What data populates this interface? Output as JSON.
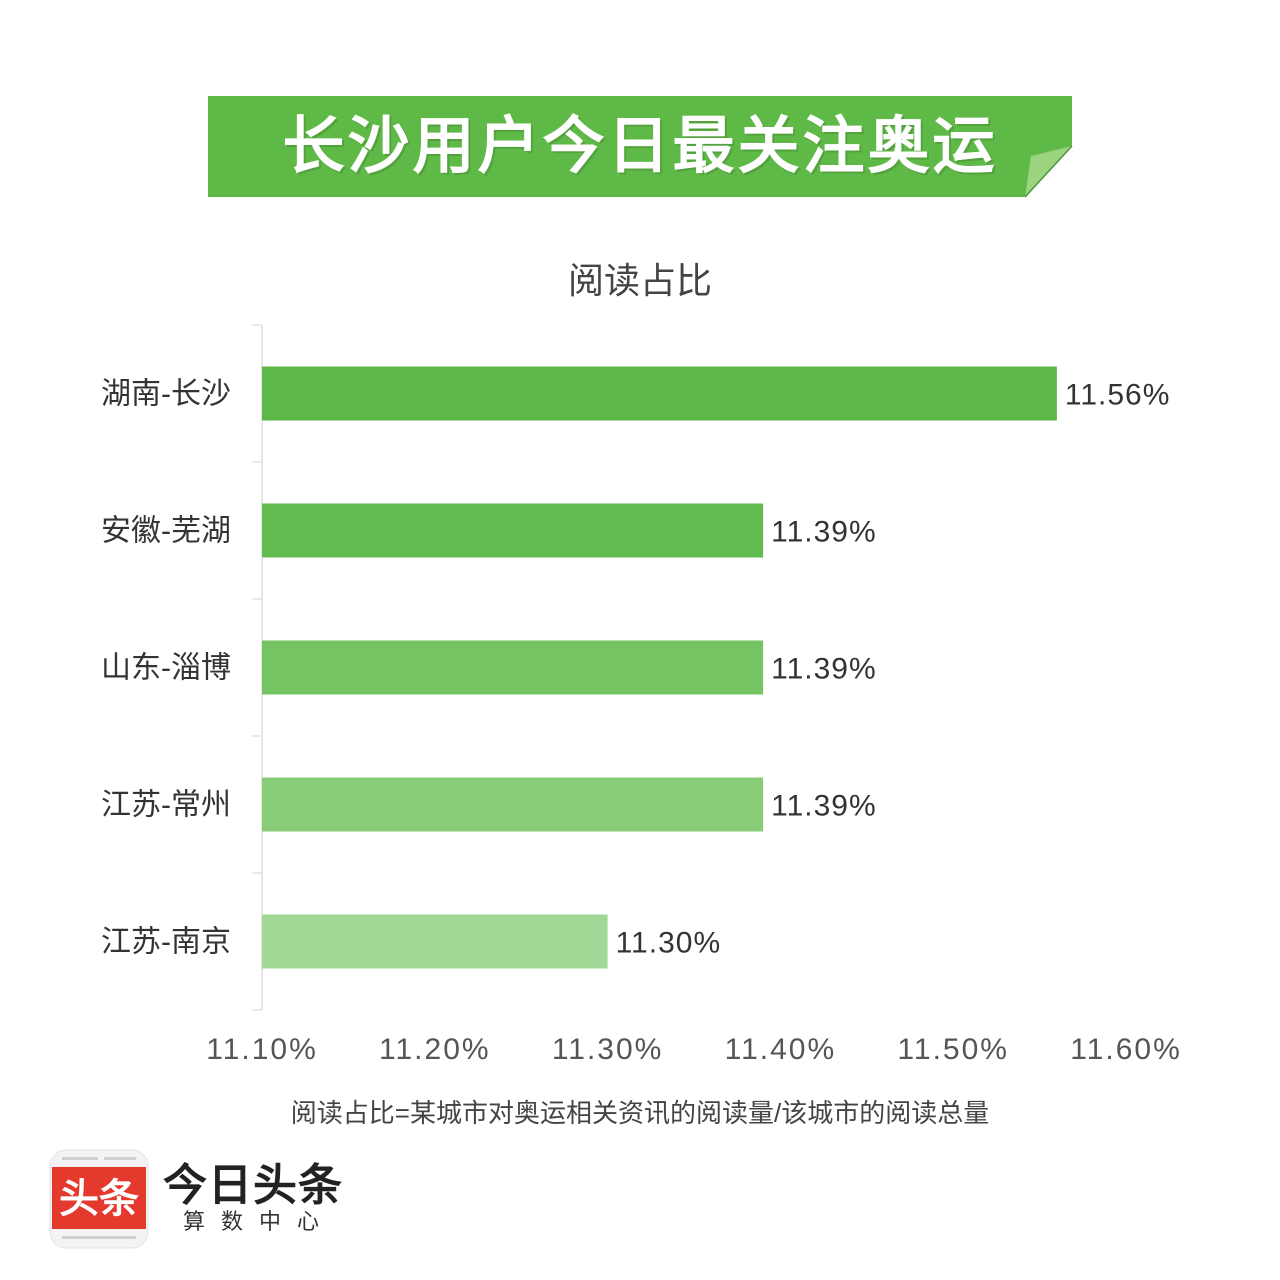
{
  "banner": {
    "title": "长沙用户今日最关注奥运",
    "color": "#5fb946",
    "fold_color": "#9bd37f"
  },
  "chart_data": {
    "type": "bar",
    "orientation": "horizontal",
    "title": "阅读占比",
    "categories": [
      "湖南-长沙",
      "安徽-芜湖",
      "山东-淄博",
      "江苏-常州",
      "江苏-南京"
    ],
    "values": [
      11.56,
      11.39,
      11.39,
      11.39,
      11.3
    ],
    "value_labels": [
      "11.56%",
      "11.39%",
      "11.39%",
      "11.39%",
      "11.30%"
    ],
    "xlim": [
      11.1,
      11.6
    ],
    "xticks": [
      11.1,
      11.2,
      11.3,
      11.4,
      11.5,
      11.6
    ],
    "xtick_labels": [
      "11.10%",
      "11.20%",
      "11.30%",
      "11.40%",
      "11.50%",
      "11.60%"
    ],
    "xlabel": "",
    "ylabel": "",
    "grid": false,
    "bar_colors": [
      "#5cb947",
      "#63bc4f",
      "#75c463",
      "#88cc78",
      "#a2d895"
    ],
    "note": "阅读占比=某城市对奥运相关资讯的阅读量/该城市的阅读总量"
  },
  "logo": {
    "icon_text": "头条",
    "brand": "今日头条",
    "tagline": "算数中心",
    "icon_color": "#e4392d"
  }
}
